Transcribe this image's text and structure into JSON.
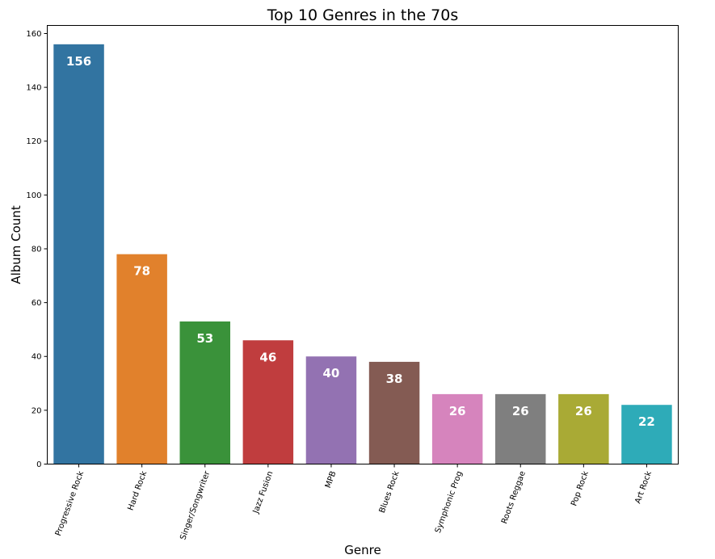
{
  "chart_data": {
    "type": "bar",
    "title": "Top 10 Genres in the 70s",
    "xlabel": "Genre",
    "ylabel": "Album Count",
    "ylim": [
      0,
      163
    ],
    "yticks": [
      0,
      20,
      40,
      60,
      80,
      100,
      120,
      140,
      160
    ],
    "grid": false,
    "categories": [
      "Progressive Rock",
      "Hard Rock",
      "Singer/Songwriter",
      "Jazz Fusion",
      "MPB",
      "Blues Rock",
      "Symphonic Prog",
      "Roots Reggae",
      "Pop Rock",
      "Art Rock"
    ],
    "values": [
      156,
      78,
      53,
      46,
      40,
      38,
      26,
      26,
      26,
      22
    ],
    "value_labels": [
      "156",
      "78",
      "53",
      "46",
      "40",
      "38",
      "26",
      "26",
      "26",
      "22"
    ],
    "colors": [
      "#3274a1",
      "#e1812c",
      "#3a923a",
      "#c03d3e",
      "#9372b2",
      "#845b53",
      "#d684bd",
      "#7f7f7f",
      "#a9aa35",
      "#2eabb8"
    ]
  }
}
